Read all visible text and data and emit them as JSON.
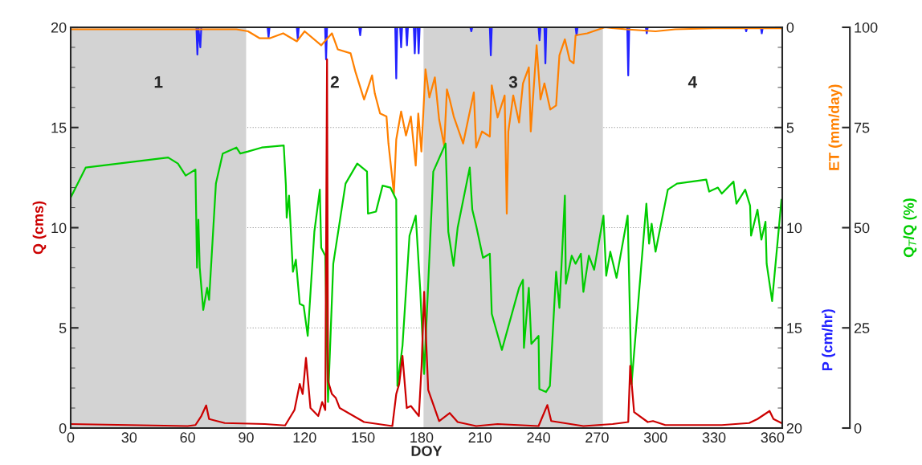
{
  "chart_data": {
    "type": "line",
    "xlabel": "DOY",
    "ylabel": "Q (cms)",
    "y2label": "ET (mm/day)",
    "y3label": "Q$_{T}$/Q (%)",
    "annotations": [
      "2",
      "4",
      "P (cm/hr)"
    ],
    "xlim": [
      0,
      365
    ],
    "xticks": [
      0,
      30,
      60,
      90,
      120,
      150,
      180,
      210,
      240,
      270,
      300,
      330,
      360
    ],
    "ylim": [
      0,
      20
    ],
    "yticks": [
      0,
      5,
      10,
      15,
      20
    ],
    "y2lim": [
      20,
      0
    ],
    "y2ticks": [
      0,
      5,
      10,
      15,
      20
    ],
    "y3lim": [
      0,
      100
    ],
    "y3ticks": [
      0,
      25,
      50,
      75,
      100
    ],
    "grid": "y",
    "bands": [
      {
        "axis": "x",
        "from": 0,
        "to": 90,
        "label": "1",
        "color": "#d3d3d3"
      },
      {
        "axis": "x",
        "from": 181,
        "to": 273,
        "label": "3",
        "color": "#d3d3d3"
      }
    ],
    "series": [
      {
        "axis": "y2",
        "color": "#2222ff",
        "x": [
          0,
          64.5,
          65,
          65.5,
          66.5,
          67,
          101,
          101.5,
          102,
          116,
          116.5,
          117,
          130.5,
          131,
          131.5,
          148,
          148.5,
          149,
          166.5,
          167,
          167.5,
          169,
          169.5,
          170,
          172,
          172.5,
          173,
          176,
          176.5,
          177,
          178,
          178.5,
          179,
          205,
          205.5,
          206,
          215,
          215.5,
          216,
          240,
          240.5,
          241,
          243,
          243.5,
          244,
          259,
          259.5,
          260,
          285.5,
          286,
          286.5,
          295,
          295.5,
          296,
          346,
          346.5,
          347,
          354,
          354.5,
          355,
          365
        ],
        "values": [
          0,
          0,
          1.36,
          0,
          1.0,
          0,
          0,
          0.5,
          0,
          0,
          0.6,
          0,
          0,
          1.6,
          0,
          0,
          0.4,
          0,
          0,
          2.55,
          0,
          0,
          1.0,
          0,
          0,
          0.9,
          0,
          0,
          1.3,
          0,
          0,
          1.3,
          0,
          0,
          0.2,
          0,
          0,
          1.4,
          0,
          0,
          0.65,
          0,
          0,
          1.8,
          0,
          0,
          0.4,
          0,
          0,
          2.4,
          0,
          0,
          0.3,
          0,
          0,
          0.2,
          0,
          0,
          0.3,
          0,
          0
        ]
      },
      {
        "axis": "y2",
        "color": "#ff8000",
        "x": [
          0,
          60,
          85,
          91,
          97,
          102,
          109,
          116,
          120,
          128.5,
          134,
          137,
          143.6,
          146,
          150.5,
          154.6,
          156,
          158.7,
          162,
          163,
          165.8,
          167,
          169.5,
          172,
          174.5,
          177,
          178.3,
          179.9,
          182,
          184,
          186.8,
          189,
          191.6,
          193,
          194.4,
          196.5,
          201.3,
          206.8,
          208,
          211,
          215,
          216,
          219,
          222.6,
          223.7,
          224.5,
          227,
          230,
          232,
          235,
          236,
          239,
          241,
          243,
          246,
          249,
          250.7,
          253.5,
          256,
          258,
          259,
          265,
          274,
          285,
          300,
          310,
          330,
          365
        ],
        "values": [
          0.1,
          0.1,
          0.1,
          0.2,
          0.55,
          0.55,
          0.3,
          0.7,
          0.2,
          0.9,
          0.3,
          1.1,
          1.3,
          2.2,
          3.6,
          2.4,
          3.3,
          4.3,
          4.45,
          5.8,
          8.3,
          5.6,
          4.2,
          5.4,
          4.45,
          6.9,
          4.3,
          6.2,
          2.1,
          3.5,
          2.5,
          4.6,
          5.9,
          3.1,
          3.6,
          4.45,
          5.8,
          3.25,
          6.0,
          5.2,
          5.45,
          2.9,
          4.5,
          3.4,
          9.3,
          5.2,
          3.4,
          4.75,
          2.8,
          2.0,
          5.2,
          0.9,
          3.6,
          2.8,
          4.1,
          3.9,
          1.4,
          0.6,
          1.65,
          1.8,
          0.4,
          0.3,
          0.0,
          0.1,
          0.2,
          0.1,
          0.05,
          0.05
        ]
      },
      {
        "axis": "y3",
        "color": "#00cc00",
        "x": [
          0,
          7.7,
          50,
          55,
          59,
          64,
          64.8,
          65.5,
          66.2,
          68,
          70,
          71,
          74.5,
          78,
          85,
          87,
          91,
          98,
          109.3,
          110.4,
          110.8,
          112,
          114,
          115.5,
          117.5,
          119.5,
          121.6,
          125,
          127.8,
          128.5,
          130.6,
          132,
          134.7,
          141,
          147,
          152,
          152.5,
          156.6,
          160,
          164,
          167,
          167.6,
          170.2,
          173.8,
          177,
          179.3,
          181.3,
          186,
          192.3,
          193.7,
          196.4,
          198.5,
          204.7,
          206,
          208,
          211.5,
          215,
          216,
          221.2,
          230,
          232,
          232.5,
          235,
          236.3,
          240,
          240.4,
          243.8,
          245.8,
          249,
          250.7,
          253.5,
          254,
          257,
          259,
          261.7,
          263,
          265.8,
          268.5,
          273.3,
          274.7,
          276.8,
          280,
          285.7,
          287.7,
          295.3,
          296.7,
          298,
          300,
          306.3,
          311,
          326,
          327.5,
          332,
          334,
          340,
          341.5,
          346,
          348.5,
          349,
          352.3,
          354.3,
          356.4,
          357,
          359.8,
          364.6
        ],
        "values": [
          57.5,
          65,
          67.5,
          66,
          63,
          64.5,
          40,
          52,
          40,
          29.5,
          35,
          32,
          61,
          68.5,
          70,
          68.5,
          69,
          70,
          70.5,
          60.5,
          52.5,
          58,
          39,
          42,
          31,
          30.5,
          23,
          49,
          59.5,
          45,
          43,
          6.5,
          41,
          61,
          66,
          64,
          53.5,
          54,
          60.5,
          60,
          57,
          10.5,
          20.5,
          48,
          53,
          34.5,
          13.5,
          64,
          71,
          49,
          40.5,
          50,
          65,
          54.5,
          50.5,
          42.5,
          43.5,
          28.5,
          19.5,
          35,
          37,
          20,
          35,
          21,
          23,
          9.7,
          9,
          10.5,
          39,
          30,
          58,
          36,
          43,
          41,
          43.5,
          34,
          43,
          39.5,
          53,
          38,
          44,
          37.5,
          53,
          11,
          56,
          46,
          51,
          44,
          59.5,
          61,
          62,
          59,
          60,
          58.5,
          61.5,
          56,
          59.5,
          55.5,
          48,
          54.5,
          47,
          51.5,
          41,
          31.7,
          57
        ]
      },
      {
        "axis": "y",
        "color": "#cc0000",
        "x": [
          0,
          60,
          64,
          67,
          69.5,
          71,
          79,
          99.6,
          110,
          114.8,
          117.5,
          119,
          120.7,
          123,
          127,
          129,
          130.6,
          131.5,
          132,
          134,
          136,
          138,
          150.5,
          165,
          167,
          168.5,
          170.2,
          172.4,
          174.5,
          178.6,
          180,
          181.3,
          183.4,
          189,
          194.4,
          198.5,
          208,
          219,
          240,
          244.5,
          246.5,
          263,
          278,
          286,
          287,
          289,
          296,
          298.7,
          305,
          334,
          348,
          352.3,
          358.5,
          360.5,
          364.6
        ],
        "values": [
          0.2,
          0.1,
          0.15,
          0.6,
          1.13,
          0.45,
          0.25,
          0.2,
          0.13,
          0.9,
          2.2,
          1.7,
          3.5,
          1.0,
          0.6,
          1.3,
          0.9,
          18.4,
          2.35,
          1.7,
          1.5,
          1.0,
          0.3,
          0.1,
          1.7,
          2.2,
          3.6,
          1.0,
          1.1,
          0.6,
          3.1,
          6.8,
          1.9,
          0.35,
          0.75,
          0.3,
          0.1,
          0.2,
          0.1,
          1.15,
          0.35,
          0.1,
          0.2,
          0.3,
          3.1,
          0.8,
          0.3,
          0.35,
          0.15,
          0.15,
          0.25,
          0.45,
          0.85,
          0.45,
          0.25
        ]
      }
    ]
  }
}
